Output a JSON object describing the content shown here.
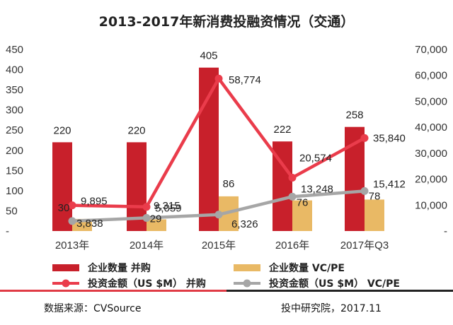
{
  "chart_data": {
    "type": "bar",
    "title": "2013-2017年新消费投融资情况（交通）",
    "categories": [
      "2013年",
      "2014年",
      "2015年",
      "2016年",
      "2017年Q3"
    ],
    "series": [
      {
        "name": "企业数量  并购",
        "type": "bar",
        "axis": "left",
        "color": "#c8202b",
        "values": [
          220,
          220,
          405,
          222,
          258
        ],
        "labels": [
          "220",
          "220",
          "405",
          "222",
          "258"
        ]
      },
      {
        "name": "企业数量  VC/PE",
        "type": "bar",
        "axis": "left",
        "color": "#e9b965",
        "values": [
          30,
          29,
          86,
          76,
          78
        ],
        "labels": [
          "30",
          "29",
          "86",
          "76",
          "78"
        ]
      },
      {
        "name": "投资金额（US $M）  并购",
        "type": "line",
        "axis": "right",
        "color": "#ea3c4b",
        "values": [
          9895,
          9315,
          58774,
          20574,
          35840
        ],
        "labels": [
          "9,895",
          "9,315",
          "58,774",
          "20,574",
          "35,840"
        ]
      },
      {
        "name": "投资金额（US $M）  VC/PE",
        "type": "line",
        "axis": "right",
        "color": "#a6a6a6",
        "values": [
          3838,
          5059,
          6326,
          13248,
          15412
        ],
        "labels": [
          "3,838",
          "5,059",
          "6,326",
          "13,248",
          "15,412"
        ]
      }
    ],
    "ylim_left": [
      0,
      450
    ],
    "yticks_left": [
      "-",
      "50",
      "100",
      "150",
      "200",
      "250",
      "300",
      "350",
      "400",
      "450"
    ],
    "ylim_right": [
      0,
      70000
    ],
    "yticks_right": [
      "-",
      "10,000",
      "20,000",
      "30,000",
      "40,000",
      "50,000",
      "60,000",
      "70,000"
    ],
    "grid": false,
    "legend_position": "bottom"
  },
  "footer": {
    "source": "数据来源：CVSource",
    "credit": "投中研究院，2017.11"
  }
}
